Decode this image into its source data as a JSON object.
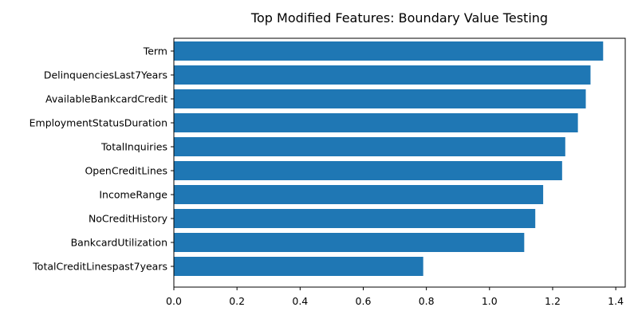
{
  "chart_data": {
    "type": "bar",
    "orientation": "horizontal",
    "title": "Top Modified Features: Boundary Value Testing",
    "xlabel": "",
    "ylabel": "",
    "xlim": [
      0,
      1.43
    ],
    "xticks": [
      "0.0",
      "0.2",
      "0.4",
      "0.6",
      "0.8",
      "1.0",
      "1.2",
      "1.4"
    ],
    "bar_color": "#1f77b4",
    "grid": false,
    "categories": [
      "Term",
      "DelinquenciesLast7Years",
      "AvailableBankcardCredit",
      "EmploymentStatusDuration",
      "TotalInquiries",
      "OpenCreditLines",
      "IncomeRange",
      "NoCreditHistory",
      "BankcardUtilization",
      "TotalCreditLinespast7years"
    ],
    "values": [
      1.36,
      1.32,
      1.305,
      1.28,
      1.24,
      1.23,
      1.17,
      1.145,
      1.11,
      0.79
    ]
  }
}
